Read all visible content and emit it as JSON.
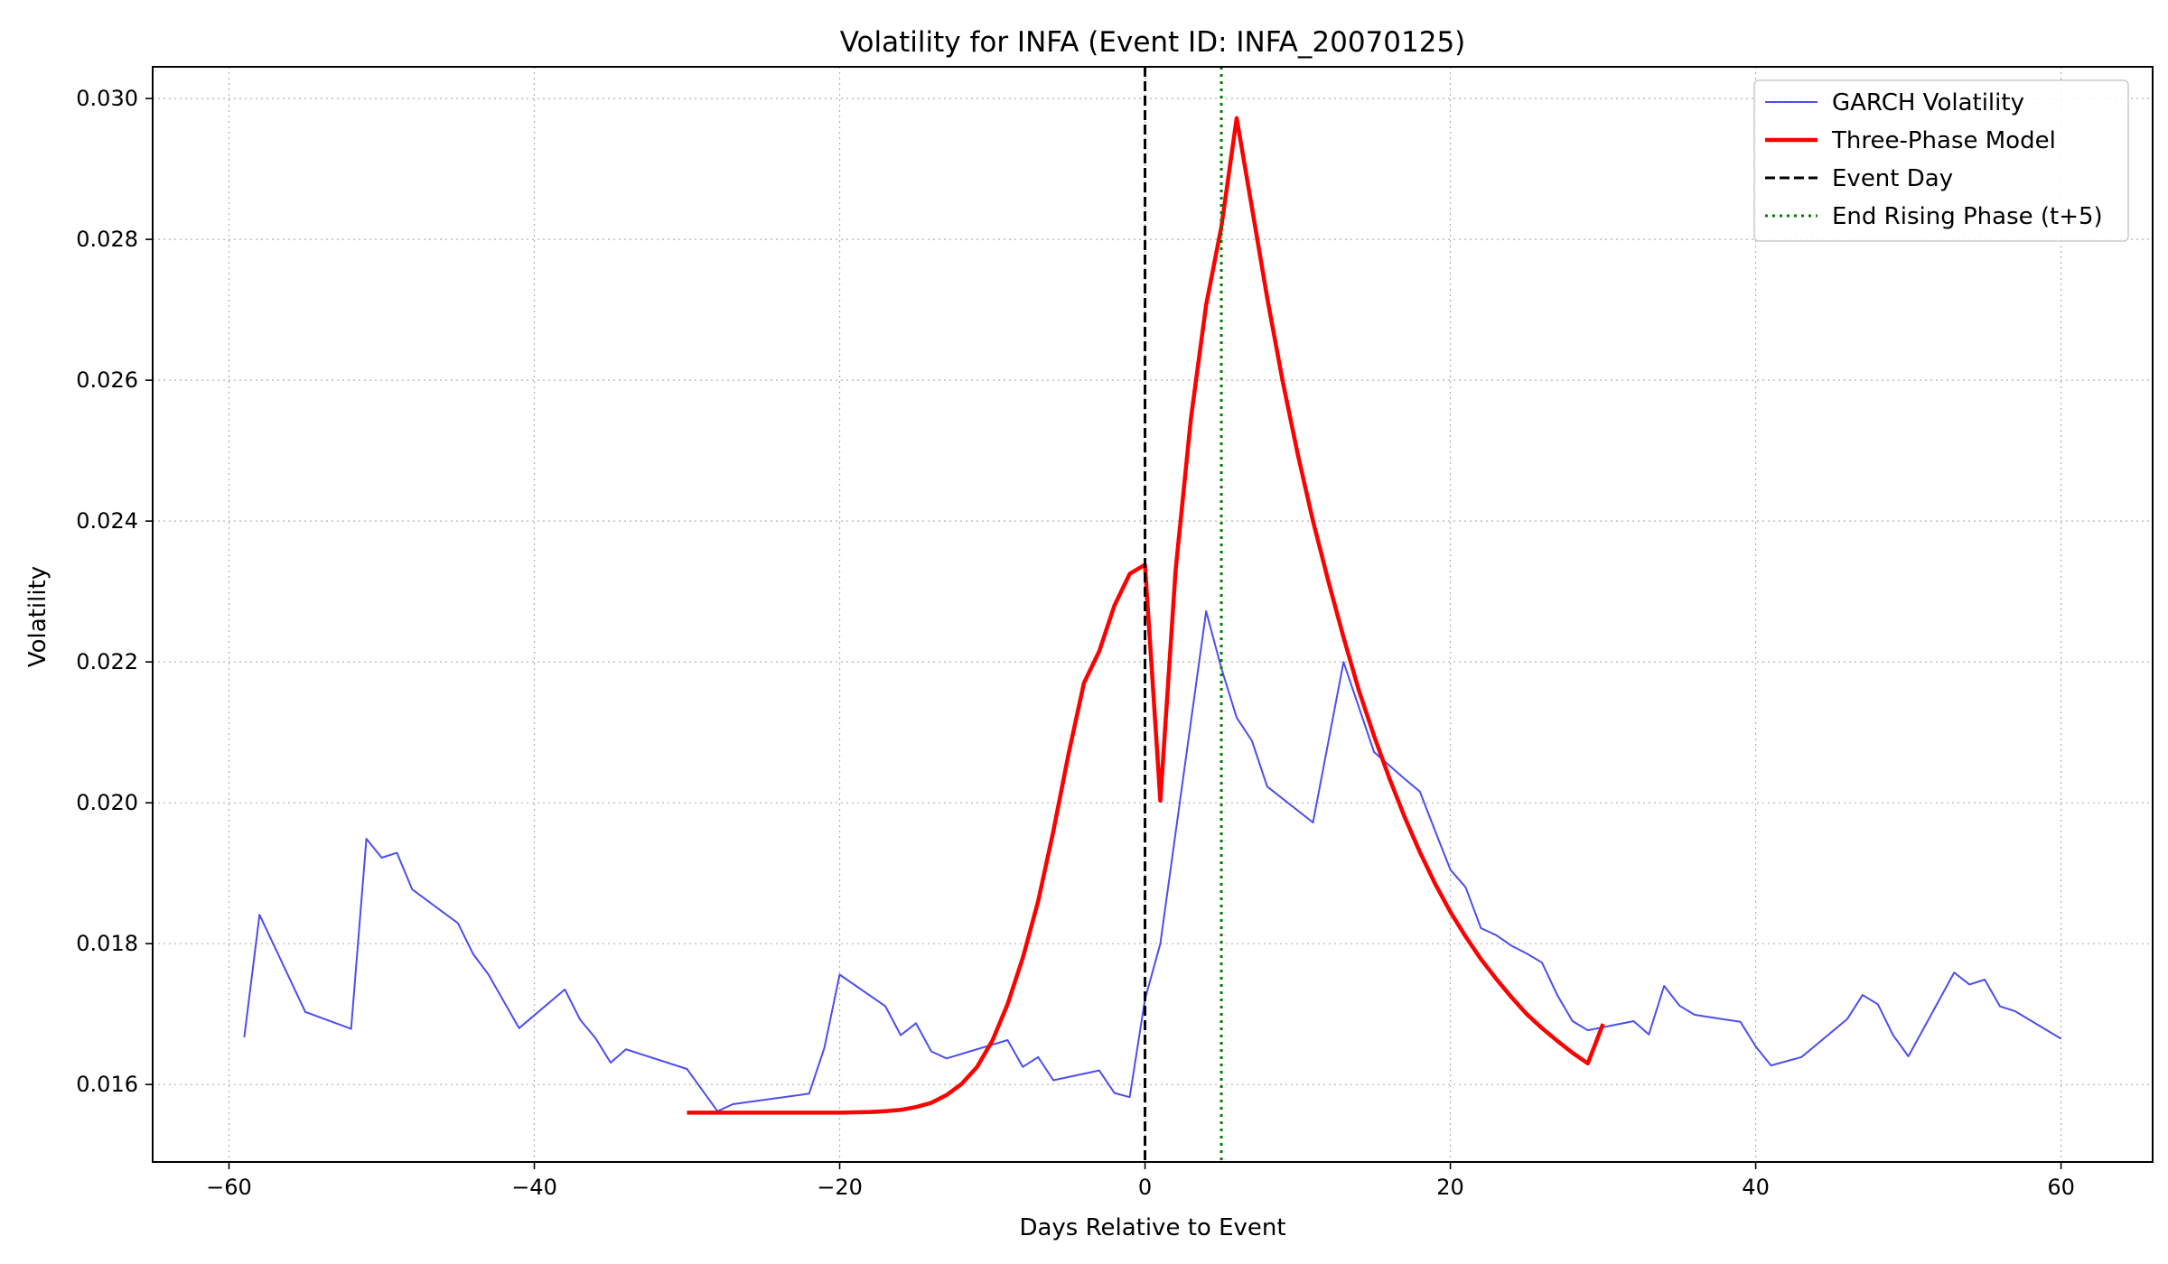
{
  "chart_data": {
    "type": "line",
    "title": "Volatility for INFA (Event ID: INFA_20070125)",
    "xlabel": "Days Relative to Event",
    "ylabel": "Volatility",
    "xlim": [
      -65,
      66
    ],
    "ylim": [
      0.0149,
      0.03045
    ],
    "xticks": [
      -60,
      -40,
      -20,
      0,
      20,
      40,
      60
    ],
    "xtick_labels": [
      "−60",
      "−40",
      "−20",
      "0",
      "20",
      "40",
      "60"
    ],
    "yticks": [
      0.016,
      0.018,
      0.02,
      0.022,
      0.024,
      0.026,
      0.028,
      0.03
    ],
    "ytick_labels": [
      "0.016",
      "0.018",
      "0.020",
      "0.022",
      "0.024",
      "0.026",
      "0.028",
      "0.030"
    ],
    "grid": true,
    "legend_position": "top-right",
    "series": [
      {
        "name": "GARCH Volatility",
        "color": "#3a3aee",
        "style": "solid",
        "x": [
          -59,
          -58,
          -55,
          -52,
          -51,
          -50,
          -49,
          -48,
          -45,
          -44,
          -43,
          -41,
          -38,
          -37,
          -36,
          -35,
          -34,
          -30,
          -28,
          -27,
          -22,
          -21,
          -20,
          -17,
          -16,
          -15,
          -14,
          -13,
          -9,
          -8,
          -7,
          -6,
          -3,
          -2,
          -1,
          0,
          1,
          4,
          5,
          6,
          7,
          8,
          11,
          13,
          15,
          17,
          18,
          19,
          20,
          21,
          22,
          23,
          24,
          25,
          26,
          27,
          28,
          29,
          32,
          33,
          34,
          35,
          36,
          39,
          40,
          41,
          43,
          46,
          47,
          48,
          49,
          50,
          53,
          54,
          55,
          56,
          57,
          60
        ],
        "y": [
          0.01667,
          0.01841,
          0.01703,
          0.01679,
          0.01949,
          0.01922,
          0.01929,
          0.01877,
          0.01829,
          0.01785,
          0.01756,
          0.0168,
          0.01735,
          0.01692,
          0.01666,
          0.01631,
          0.0165,
          0.01622,
          0.01562,
          0.01572,
          0.01587,
          0.01652,
          0.01756,
          0.01711,
          0.0167,
          0.01687,
          0.01647,
          0.01637,
          0.01663,
          0.01625,
          0.01639,
          0.01606,
          0.0162,
          0.01588,
          0.01582,
          0.01721,
          0.018,
          0.02272,
          0.02191,
          0.02121,
          0.02088,
          0.02023,
          0.01972,
          0.022,
          0.02072,
          0.02034,
          0.02016,
          0.0196,
          0.01905,
          0.0188,
          0.01822,
          0.01812,
          0.01797,
          0.01786,
          0.01773,
          0.01727,
          0.0169,
          0.01677,
          0.0169,
          0.01671,
          0.0174,
          0.01712,
          0.01699,
          0.01689,
          0.01654,
          0.01627,
          0.01639,
          0.01693,
          0.01727,
          0.01714,
          0.0167,
          0.0164,
          0.01759,
          0.01742,
          0.01749,
          0.01711,
          0.01704,
          0.01665
        ]
      },
      {
        "name": "Three-Phase Model",
        "color": "#ff0000",
        "style": "solid",
        "x": [
          -30,
          -25,
          -20,
          -18,
          -17,
          -16,
          -15,
          -14,
          -13,
          -12,
          -11,
          -10,
          -9,
          -8,
          -7,
          -6,
          -5,
          -4,
          -3,
          -2,
          -1,
          0,
          1,
          2,
          3,
          4,
          5,
          6,
          7,
          8,
          9,
          10,
          11,
          12,
          13,
          14,
          15,
          16,
          17,
          18,
          19,
          20,
          21,
          22,
          23,
          24,
          25,
          26,
          27,
          28,
          29,
          30
        ],
        "y": [
          0.0156,
          0.0156,
          0.0156,
          0.01561,
          0.01562,
          0.01564,
          0.01568,
          0.01574,
          0.01585,
          0.01601,
          0.01625,
          0.01662,
          0.01714,
          0.0178,
          0.0186,
          0.0196,
          0.0207,
          0.0217,
          0.02215,
          0.0228,
          0.02325,
          0.02338,
          0.02003,
          0.0233,
          0.02545,
          0.02707,
          0.02818,
          0.02972,
          0.02845,
          0.02717,
          0.026,
          0.02495,
          0.024,
          0.02315,
          0.02235,
          0.0216,
          0.02095,
          0.02035,
          0.0198,
          0.0193,
          0.01885,
          0.01845,
          0.0181,
          0.01778,
          0.0175,
          0.01724,
          0.017,
          0.0168,
          0.01662,
          0.01645,
          0.0163,
          0.01686
        ]
      }
    ],
    "reference_lines": [
      {
        "name": "Event Day",
        "x": 0,
        "color": "#000000",
        "style": "dashed"
      },
      {
        "name": "End Rising Phase (t+5)",
        "x": 5,
        "color": "#007f00",
        "style": "dotted"
      }
    ]
  }
}
